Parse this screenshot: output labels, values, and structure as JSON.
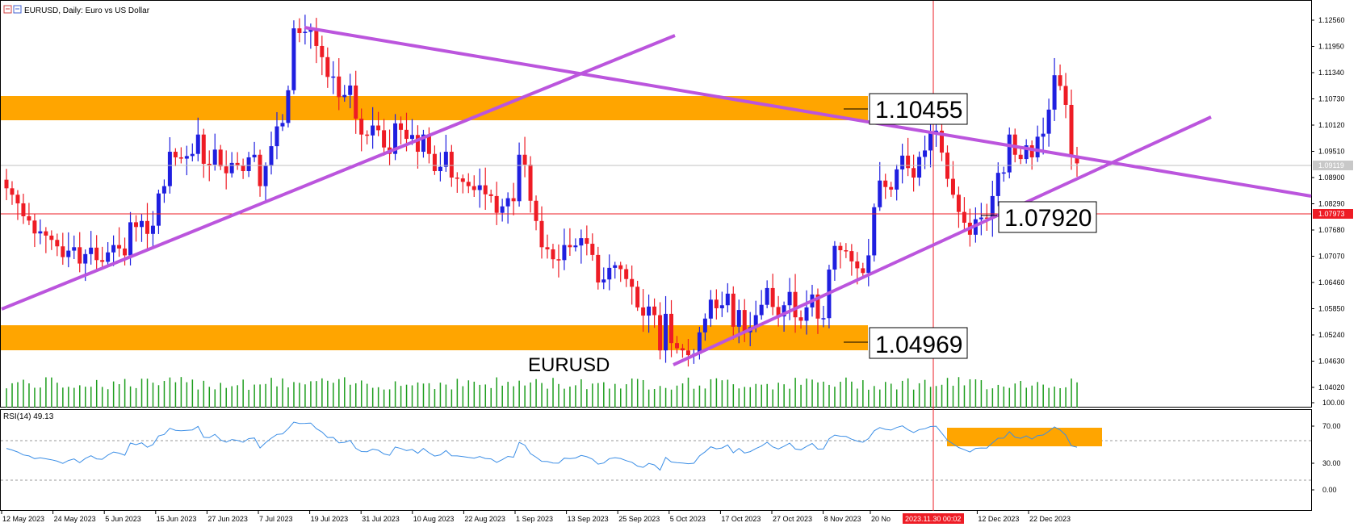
{
  "header": {
    "title": "EURUSD, Daily:  Euro vs US Dollar"
  },
  "colors": {
    "bull": "#1f1fe0",
    "bear": "#ee1c25",
    "zone": "#ffa500",
    "trendline": "#bb55dd",
    "volume": "#1e9e1e",
    "rsi": "#3b8ee6",
    "crosshair": "#ee1c25"
  },
  "price_scale": {
    "ticks": [
      "1.12560",
      "1.11950",
      "1.11340",
      "1.10730",
      "1.10120",
      "1.09510",
      "1.08900",
      "1.08290",
      "1.07680",
      "1.07070",
      "1.06460",
      "1.05850",
      "1.05240",
      "1.04630",
      "1.04020"
    ],
    "current_price": "1.09119",
    "crosshair_price": "1.07973"
  },
  "rsi": {
    "label": "RSI(14) 49.13",
    "ticks": [
      "100.00",
      "70.00",
      "30.00",
      "0.00"
    ]
  },
  "time_axis": {
    "labels": [
      "12 May 2023",
      "24 May 2023",
      "5 Jun 2023",
      "15 Jun 2023",
      "27 Jun 2023",
      "7 Jul 2023",
      "19 Jul 2023",
      "31 Jul 2023",
      "10 Aug 2023",
      "22 Aug 2023",
      "1 Sep 2023",
      "13 Sep 2023",
      "25 Sep 2023",
      "5 Oct 2023",
      "17 Oct 2023",
      "27 Oct 2023",
      "8 Nov 2023",
      "20 No",
      "2023.11.30 00:02",
      "12 Dec 2023",
      "22 Dec 2023"
    ]
  },
  "annotations": {
    "symbol_label": "EURUSD",
    "level_upper": "1.10455",
    "level_support": "1.07920",
    "level_lower": "1.04969"
  },
  "chart_data": {
    "type": "candlestick",
    "symbol": "EURUSD",
    "timeframe": "Daily",
    "price_range": [
      1.0372,
      1.1285
    ],
    "closes": [
      1.0865,
      1.085,
      1.083,
      1.08,
      1.079,
      1.076,
      1.0765,
      1.0755,
      1.0745,
      1.073,
      1.0705,
      1.072,
      1.0728,
      1.069,
      1.0712,
      1.0727,
      1.0698,
      1.0694,
      1.0716,
      1.0733,
      1.0725,
      1.0709,
      1.0786,
      1.0775,
      1.0789,
      1.0759,
      1.0778,
      1.0853,
      1.087,
      1.095,
      1.0937,
      1.0934,
      1.094,
      1.0945,
      1.099,
      1.0922,
      1.092,
      1.0955,
      1.0916,
      1.09,
      1.0924,
      1.0918,
      1.0905,
      1.0937,
      1.0943,
      1.087,
      1.0917,
      1.0963,
      1.1009,
      1.1017,
      1.1093,
      1.1237,
      1.1226,
      1.1229,
      1.1236,
      1.1196,
      1.117,
      1.1124,
      1.1125,
      1.1077,
      1.1082,
      1.1104,
      1.1027,
      1.099,
      1.0988,
      1.1011,
      1.1,
      1.096,
      1.0945,
      1.1016,
      1.1001,
      1.098,
      1.0989,
      1.095,
      1.099,
      1.0945,
      1.0905,
      1.0915,
      1.095,
      1.089,
      1.0888,
      1.088,
      1.087,
      1.0861,
      1.0872,
      1.0851,
      1.0847,
      1.0808,
      1.0823,
      1.0842,
      1.0835,
      1.0943,
      1.092,
      1.0836,
      1.0789,
      1.0728,
      1.0723,
      1.07,
      1.0698,
      1.0733,
      1.0728,
      1.0732,
      1.0749,
      1.0736,
      1.071,
      1.0646,
      1.0653,
      1.068,
      1.0686,
      1.0677,
      1.0654,
      1.0636,
      1.0588,
      1.0569,
      1.059,
      1.057,
      1.0488,
      1.0573,
      1.0505,
      1.0493,
      1.0488,
      1.0477,
      1.048,
      1.053,
      1.0562,
      1.0606,
      1.0586,
      1.0593,
      1.062,
      1.0543,
      1.0582,
      1.053,
      1.0542,
      1.057,
      1.0594,
      1.0633,
      1.0589,
      1.0567,
      1.0593,
      1.0624,
      1.0565,
      1.0557,
      1.0588,
      1.0618,
      1.0562,
      1.0563,
      1.0676,
      1.0731,
      1.0721,
      1.0719,
      1.0695,
      1.0679,
      1.0668,
      1.0709,
      1.0821,
      1.0883,
      1.0868,
      1.0862,
      1.0909,
      1.0941,
      1.0912,
      1.089,
      1.0938,
      1.0953,
      1.0993,
      1.0999,
      1.0948,
      1.0887,
      1.085,
      1.081,
      1.0785,
      1.0757,
      1.0793,
      1.0797,
      1.0795,
      1.0847,
      1.0901,
      1.0902,
      1.099,
      1.0943,
      1.0933,
      1.0965,
      1.0937,
      1.0985,
      1.0992,
      1.1048,
      1.1128,
      1.1103,
      1.1059,
      1.0941,
      1.0923
    ]
  }
}
